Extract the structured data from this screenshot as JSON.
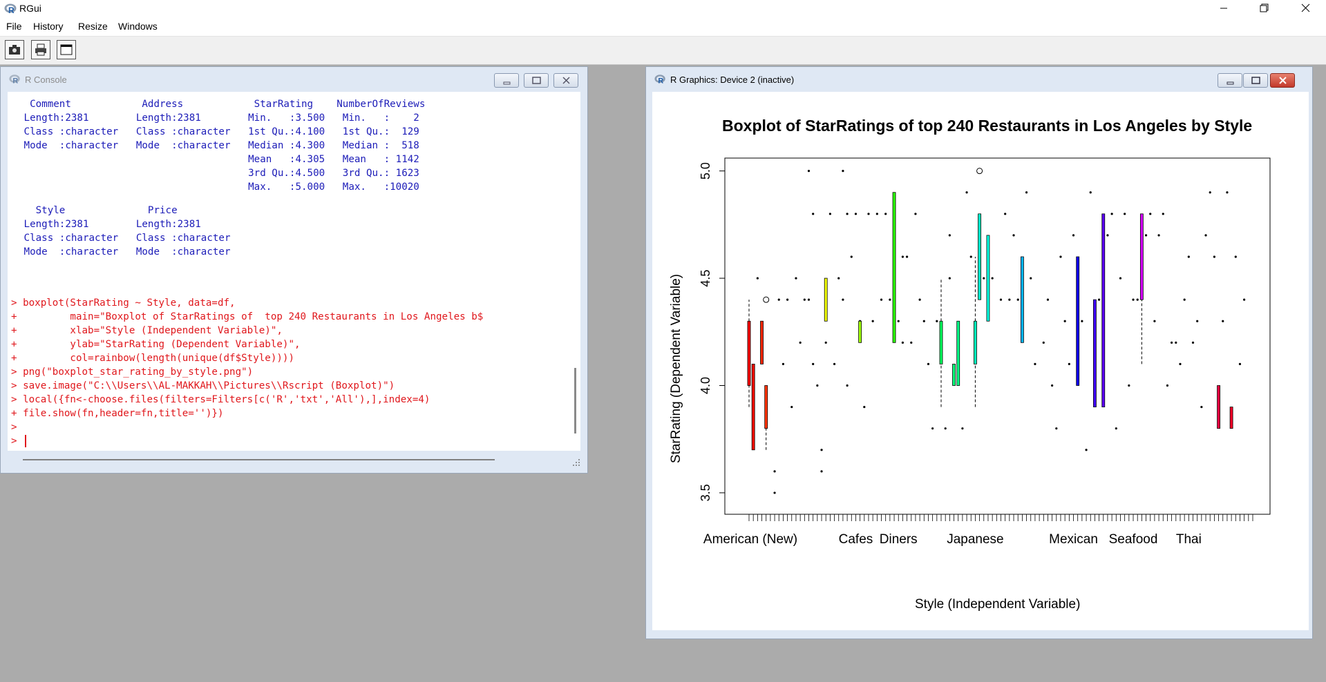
{
  "app": {
    "title": "RGui",
    "menu": [
      "File",
      "History",
      "Resize",
      "Windows"
    ],
    "toolbar": [
      "copy-screenshot-icon",
      "print-icon",
      "window-icon"
    ]
  },
  "console": {
    "title": "R Console",
    "summary_block1": [
      "  Comment            Address            StarRating    NumberOfReviews",
      " Length:2381        Length:2381        Min.   :3.500   Min.   :    2  ",
      " Class :character   Class :character   1st Qu.:4.100   1st Qu.:  129  ",
      " Mode  :character   Mode  :character   Median :4.300   Median :  518  ",
      "                                       Mean   :4.305   Mean   : 1142  ",
      "                                       3rd Qu.:4.500   3rd Qu.: 1623  ",
      "                                       Max.   :5.000   Max.   :10020  "
    ],
    "summary_block2": [
      "   Style              Price          ",
      " Length:2381        Length:2381       ",
      " Class :character   Class :character  ",
      " Mode  :character   Mode  :character  "
    ],
    "commands": [
      "> boxplot(StarRating ~ Style, data=df,",
      "+         main=\"Boxplot of StarRatings of  top 240 Restaurants in Los Angeles b$",
      "+         xlab=\"Style (Independent Variable)\",",
      "+         ylab=\"StarRating (Dependent Variable)\",",
      "+         col=rainbow(length(unique(df$Style))))",
      "> png(\"boxplot_star_rating_by_style.png\")",
      "> save.image(\"C:\\\\Users\\\\AL-MAKKAH\\\\Pictures\\\\Rscript (Boxplot)\")",
      "> local({fn<-choose.files(filters=Filters[c('R','txt','All'),],index=4)",
      "+ file.show(fn,header=fn,title='')})",
      ">",
      "> "
    ]
  },
  "graphics": {
    "title": "R Graphics: Device 2 (inactive)"
  },
  "chart_data": {
    "type": "boxplot",
    "title": "Boxplot of StarRatings of  top 240 Restaurants in Los Angeles by Style",
    "xlabel": "Style (Independent Variable)",
    "ylabel": "StarRating (Dependent Variable)",
    "ylim": [
      3.4,
      5.06
    ],
    "yticks": [
      "3.5",
      "4.0",
      "4.5",
      "5.0"
    ],
    "x_tick_labels": [
      "American (New)",
      "Cafes",
      "Diners",
      "Japanese",
      "Mexican",
      "Seafood",
      "Thai"
    ],
    "num_categories": 119,
    "boxes": [
      {
        "i": 1,
        "min": 3.9,
        "q1": 4.0,
        "q3": 4.3,
        "max": 4.4,
        "color": "#ff0000"
      },
      {
        "i": 2,
        "min": 3.7,
        "q1": 3.7,
        "q3": 4.1,
        "max": 4.1,
        "color": "#ff0d00"
      },
      {
        "i": 4,
        "min": 4.1,
        "q1": 4.1,
        "q3": 4.3,
        "max": 4.3,
        "color": "#ff2700"
      },
      {
        "i": 5,
        "min": 3.7,
        "q1": 3.8,
        "q3": 4.0,
        "max": 4.0,
        "color": "#ff3400"
      },
      {
        "i": 19,
        "min": 4.3,
        "q1": 4.3,
        "q3": 4.5,
        "max": 4.5,
        "color": "#f3ff00"
      },
      {
        "i": 27,
        "min": 4.2,
        "q1": 4.2,
        "q3": 4.3,
        "max": 4.3,
        "color": "#a0ff00"
      },
      {
        "i": 35,
        "min": 4.2,
        "q1": 4.2,
        "q3": 4.9,
        "max": 4.9,
        "color": "#2cff00"
      },
      {
        "i": 46,
        "min": 3.9,
        "q1": 4.1,
        "q3": 4.3,
        "max": 4.5,
        "color": "#00ff5e"
      },
      {
        "i": 49,
        "min": 4.0,
        "q1": 4.0,
        "q3": 4.1,
        "max": 4.1,
        "color": "#00ff7b"
      },
      {
        "i": 50,
        "min": 4.0,
        "q1": 4.0,
        "q3": 4.3,
        "max": 4.3,
        "color": "#00ff88"
      },
      {
        "i": 54,
        "min": 3.9,
        "q1": 4.1,
        "q3": 4.3,
        "max": 4.6,
        "color": "#00ffbc"
      },
      {
        "i": 55,
        "min": 4.4,
        "q1": 4.4,
        "q3": 4.8,
        "max": 4.8,
        "color": "#00ffc9"
      },
      {
        "i": 57,
        "min": 4.3,
        "q1": 4.3,
        "q3": 4.7,
        "max": 4.7,
        "color": "#00ffe3"
      },
      {
        "i": 65,
        "min": 4.2,
        "q1": 4.2,
        "q3": 4.6,
        "max": 4.6,
        "color": "#00b4ff"
      },
      {
        "i": 78,
        "min": 4.0,
        "q1": 4.0,
        "q3": 4.6,
        "max": 4.6,
        "color": "#0d00ff"
      },
      {
        "i": 82,
        "min": 3.9,
        "q1": 3.9,
        "q3": 4.4,
        "max": 4.4,
        "color": "#4100ff"
      },
      {
        "i": 84,
        "min": 3.9,
        "q1": 3.9,
        "q3": 4.8,
        "max": 4.8,
        "color": "#5b00ff"
      },
      {
        "i": 93,
        "min": 4.1,
        "q1": 4.4,
        "q3": 4.8,
        "max": 4.8,
        "color": "#d500ff"
      },
      {
        "i": 111,
        "min": 3.8,
        "q1": 3.8,
        "q3": 4.0,
        "max": 4.0,
        "color": "#ff0041"
      },
      {
        "i": 114,
        "min": 3.8,
        "q1": 3.8,
        "q3": 3.9,
        "max": 3.9,
        "color": "#ff0027"
      }
    ],
    "outliers": [
      {
        "i": 5,
        "y": 4.4,
        "open": true
      },
      {
        "i": 55,
        "y": 5.0,
        "open": true
      }
    ],
    "points": [
      {
        "i": 3,
        "y": 4.5
      },
      {
        "i": 7,
        "y": 3.6
      },
      {
        "i": 7,
        "y": 3.5
      },
      {
        "i": 8,
        "y": 4.4
      },
      {
        "i": 9,
        "y": 4.1
      },
      {
        "i": 10,
        "y": 4.4
      },
      {
        "i": 11,
        "y": 3.9
      },
      {
        "i": 12,
        "y": 4.5
      },
      {
        "i": 13,
        "y": 4.2
      },
      {
        "i": 14,
        "y": 4.4
      },
      {
        "i": 15,
        "y": 4.4
      },
      {
        "i": 15,
        "y": 5.0
      },
      {
        "i": 16,
        "y": 4.8
      },
      {
        "i": 16,
        "y": 4.1
      },
      {
        "i": 17,
        "y": 4.0
      },
      {
        "i": 18,
        "y": 3.6
      },
      {
        "i": 18,
        "y": 3.7
      },
      {
        "i": 19,
        "y": 4.2
      },
      {
        "i": 20,
        "y": 4.8
      },
      {
        "i": 21,
        "y": 4.1
      },
      {
        "i": 22,
        "y": 4.5
      },
      {
        "i": 23,
        "y": 5.0
      },
      {
        "i": 23,
        "y": 4.4
      },
      {
        "i": 24,
        "y": 4.8
      },
      {
        "i": 24,
        "y": 4.0
      },
      {
        "i": 25,
        "y": 4.6
      },
      {
        "i": 26,
        "y": 4.8
      },
      {
        "i": 27,
        "y": 4.3
      },
      {
        "i": 28,
        "y": 3.9
      },
      {
        "i": 29,
        "y": 4.8
      },
      {
        "i": 30,
        "y": 4.3
      },
      {
        "i": 31,
        "y": 4.8
      },
      {
        "i": 32,
        "y": 4.4
      },
      {
        "i": 33,
        "y": 4.8
      },
      {
        "i": 34,
        "y": 4.4
      },
      {
        "i": 36,
        "y": 4.3
      },
      {
        "i": 37,
        "y": 4.2
      },
      {
        "i": 37,
        "y": 4.6
      },
      {
        "i": 38,
        "y": 4.6
      },
      {
        "i": 39,
        "y": 4.2
      },
      {
        "i": 40,
        "y": 4.8
      },
      {
        "i": 41,
        "y": 4.4
      },
      {
        "i": 42,
        "y": 4.3
      },
      {
        "i": 43,
        "y": 4.1
      },
      {
        "i": 44,
        "y": 3.8
      },
      {
        "i": 45,
        "y": 4.3
      },
      {
        "i": 47,
        "y": 3.8
      },
      {
        "i": 48,
        "y": 4.5
      },
      {
        "i": 48,
        "y": 4.7
      },
      {
        "i": 51,
        "y": 3.8
      },
      {
        "i": 52,
        "y": 4.9
      },
      {
        "i": 53,
        "y": 4.6
      },
      {
        "i": 56,
        "y": 4.5
      },
      {
        "i": 58,
        "y": 4.5
      },
      {
        "i": 60,
        "y": 4.4
      },
      {
        "i": 61,
        "y": 4.8
      },
      {
        "i": 62,
        "y": 4.4
      },
      {
        "i": 63,
        "y": 4.7
      },
      {
        "i": 64,
        "y": 4.4
      },
      {
        "i": 66,
        "y": 4.9
      },
      {
        "i": 67,
        "y": 4.5
      },
      {
        "i": 68,
        "y": 4.1
      },
      {
        "i": 70,
        "y": 4.2
      },
      {
        "i": 71,
        "y": 4.4
      },
      {
        "i": 72,
        "y": 4.0
      },
      {
        "i": 73,
        "y": 3.8
      },
      {
        "i": 74,
        "y": 4.6
      },
      {
        "i": 75,
        "y": 4.3
      },
      {
        "i": 76,
        "y": 4.1
      },
      {
        "i": 77,
        "y": 4.7
      },
      {
        "i": 79,
        "y": 4.3
      },
      {
        "i": 80,
        "y": 3.7
      },
      {
        "i": 81,
        "y": 4.9
      },
      {
        "i": 83,
        "y": 4.4
      },
      {
        "i": 85,
        "y": 4.7
      },
      {
        "i": 86,
        "y": 4.8
      },
      {
        "i": 87,
        "y": 3.8
      },
      {
        "i": 88,
        "y": 4.5
      },
      {
        "i": 89,
        "y": 4.8
      },
      {
        "i": 90,
        "y": 4.0
      },
      {
        "i": 91,
        "y": 4.4
      },
      {
        "i": 92,
        "y": 4.4
      },
      {
        "i": 94,
        "y": 4.7
      },
      {
        "i": 95,
        "y": 4.8
      },
      {
        "i": 96,
        "y": 4.3
      },
      {
        "i": 97,
        "y": 4.7
      },
      {
        "i": 98,
        "y": 4.8
      },
      {
        "i": 99,
        "y": 4.0
      },
      {
        "i": 100,
        "y": 4.2
      },
      {
        "i": 101,
        "y": 4.2
      },
      {
        "i": 102,
        "y": 4.1
      },
      {
        "i": 103,
        "y": 4.4
      },
      {
        "i": 104,
        "y": 4.6
      },
      {
        "i": 105,
        "y": 4.2
      },
      {
        "i": 106,
        "y": 4.3
      },
      {
        "i": 107,
        "y": 3.9
      },
      {
        "i": 108,
        "y": 4.7
      },
      {
        "i": 109,
        "y": 4.9
      },
      {
        "i": 110,
        "y": 4.6
      },
      {
        "i": 112,
        "y": 4.3
      },
      {
        "i": 113,
        "y": 4.9
      },
      {
        "i": 115,
        "y": 4.6
      },
      {
        "i": 116,
        "y": 4.1
      },
      {
        "i": 117,
        "y": 4.4
      }
    ]
  }
}
